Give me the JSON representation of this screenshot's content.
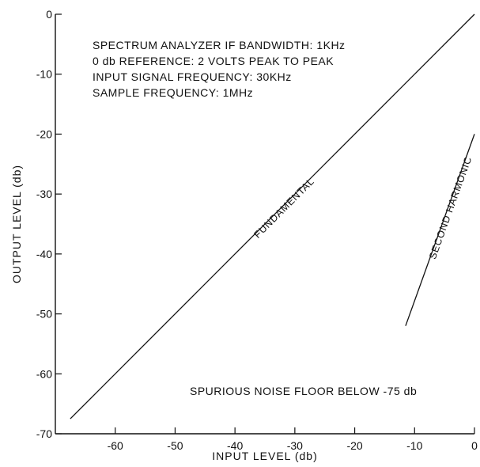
{
  "chart_data": {
    "type": "line",
    "xlabel": "INPUT LEVEL (db)",
    "ylabel": "OUTPUT LEVEL (db)",
    "xlim": [
      -70,
      0
    ],
    "ylim": [
      -70,
      0
    ],
    "x_ticks": [
      -60,
      -50,
      -40,
      -30,
      -20,
      -10,
      0
    ],
    "y_ticks": [
      -70,
      -60,
      -50,
      -40,
      -30,
      -20,
      -10,
      0
    ],
    "grid": false,
    "notes": [
      "SPECTRUM ANALYZER IF BANDWIDTH: 1KHz",
      "0 db REFERENCE: 2 VOLTS PEAK TO PEAK",
      "INPUT SIGNAL FREQUENCY: 30KHz",
      "SAMPLE FREQUENCY: 1MHz"
    ],
    "annotation": "SPURIOUS NOISE FLOOR BELOW -75 db",
    "series": [
      {
        "name": "FUNDAMENTAL",
        "x": [
          -67.5,
          0
        ],
        "y": [
          -67.5,
          0
        ]
      },
      {
        "name": "SECOND HARMONIC",
        "x": [
          -11.5,
          0
        ],
        "y": [
          -52,
          -20
        ]
      }
    ]
  }
}
